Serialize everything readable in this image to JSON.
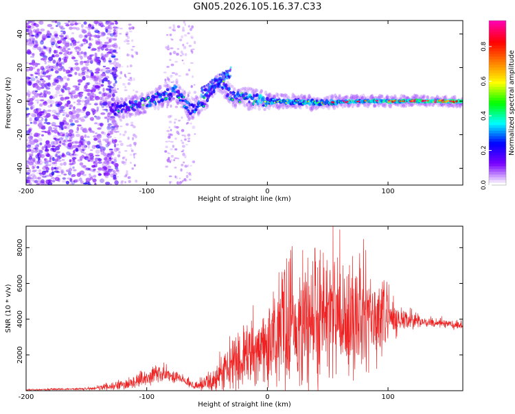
{
  "figure_title": "GN05.2026.105.16.37.C33",
  "colors": {
    "signal": "#ee2222",
    "spectro_background": "#ffffff",
    "frame": "#000000"
  },
  "chart_data": [
    {
      "type": "heatmap",
      "id": "spectrogram",
      "title": "GN05.2026.105.16.37.C33",
      "xlabel": "Height of straight line (km)",
      "ylabel": "Frequency (Hz)",
      "xlim": [
        -200,
        162
      ],
      "ylim": [
        -50,
        48
      ],
      "xticks": [
        -200,
        -100,
        0,
        100
      ],
      "yticks": [
        -40,
        -20,
        0,
        20,
        40
      ],
      "colorbar": {
        "label": "Normalized spectral amplitude",
        "range": [
          0,
          0.95
        ],
        "ticks": [
          0.0,
          0.2,
          0.4,
          0.6,
          0.8
        ],
        "tick_labels": [
          "0.0",
          "0.2",
          "0.4",
          "0.6",
          "0.8"
        ],
        "colormap": [
          "#ffffff",
          "#7a00ff",
          "#0000ff",
          "#00ffff",
          "#00ff00",
          "#ffff00",
          "#ff8000",
          "#ff0000",
          "#ff00aa"
        ]
      },
      "ridge": [
        {
          "x": -130,
          "freq": -5,
          "amp": 0.25
        },
        {
          "x": -110,
          "freq": -3,
          "amp": 0.35
        },
        {
          "x": -90,
          "freq": 2,
          "amp": 0.45
        },
        {
          "x": -75,
          "freq": 6,
          "amp": 0.4
        },
        {
          "x": -65,
          "freq": -5,
          "amp": 0.35
        },
        {
          "x": -55,
          "freq": -2,
          "amp": 0.4
        },
        {
          "x": -40,
          "freq": 12,
          "amp": 0.35
        },
        {
          "x": -30,
          "freq": 3,
          "amp": 0.45
        },
        {
          "x": 0,
          "freq": 0,
          "amp": 0.5
        },
        {
          "x": 40,
          "freq": -1,
          "amp": 0.55
        },
        {
          "x": 80,
          "freq": 0,
          "amp": 0.6
        },
        {
          "x": 120,
          "freq": 0,
          "amp": 0.65
        },
        {
          "x": 160,
          "freq": 0,
          "amp": 0.75
        }
      ]
    },
    {
      "type": "line",
      "id": "snr",
      "xlabel": "Height of straight line (km)",
      "ylabel": "SNR (10 * v/v)",
      "xlim": [
        -200,
        162
      ],
      "ylim": [
        0,
        9200
      ],
      "xticks": [
        -200,
        -100,
        0,
        100
      ],
      "yticks": [
        2000,
        4000,
        6000,
        8000
      ],
      "series": [
        {
          "name": "SNR",
          "envelope": {
            "x": [
              -200,
              -150,
              -120,
              -100,
              -90,
              -75,
              -60,
              -45,
              -35,
              -20,
              -10,
              0,
              20,
              30,
              45,
              50,
              60,
              80,
              100,
              110,
              130,
              150,
              162
            ],
            "mean": [
              50,
              100,
              300,
              700,
              1000,
              800,
              250,
              500,
              1100,
              1600,
              2300,
              2700,
              3100,
              3600,
              4000,
              4300,
              4100,
              3900,
              3800,
              3900,
              3850,
              3750,
              3600
            ],
            "amplitude": [
              40,
              80,
              300,
              500,
              600,
              500,
              200,
              700,
              1400,
              1800,
              2300,
              2800,
              3800,
              4500,
              4800,
              4600,
              4200,
              3600,
              2200,
              800,
              300,
              300,
              350
            ]
          }
        }
      ]
    }
  ]
}
